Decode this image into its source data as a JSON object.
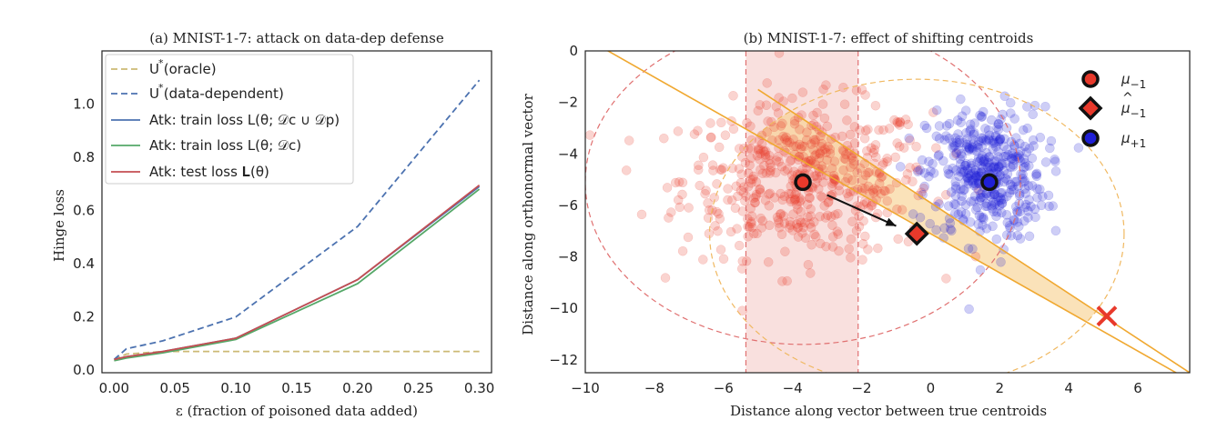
{
  "chart_data": [
    {
      "type": "line",
      "title": "(a) MNIST-1-7: attack on data-dep defense",
      "xlabel": "ε (fraction of poisoned data added)",
      "ylabel": "Hinge loss",
      "xlim": [
        -0.01,
        0.31
      ],
      "ylim": [
        -0.01,
        1.2
      ],
      "xticks": [
        "0.00",
        "0.05",
        "0.10",
        "0.15",
        "0.20",
        "0.25",
        "0.30"
      ],
      "yticks": [
        "0.0",
        "0.2",
        "0.4",
        "0.6",
        "0.8",
        "1.0"
      ],
      "grid": false,
      "legend_position": "top-left",
      "series": [
        {
          "name": "U* (oracle)",
          "legend": "U (oracle)",
          "color": "#ccb974",
          "dash": true,
          "x": [
            0.0,
            0.01,
            0.04,
            0.1,
            0.2,
            0.3
          ],
          "y": [
            0.04,
            0.06,
            0.07,
            0.07,
            0.07,
            0.07
          ]
        },
        {
          "name": "U* (data-dependent)",
          "legend": "U (data-dependent)",
          "color": "#4c72b0",
          "dash": true,
          "x": [
            0.0,
            0.01,
            0.04,
            0.1,
            0.2,
            0.3
          ],
          "y": [
            0.04,
            0.08,
            0.11,
            0.2,
            0.54,
            1.09
          ]
        },
        {
          "name": "Atk: train loss L(θ̂; Dc ∪ Dp)",
          "legend": "Atk: train loss L(θ; 𝒟c ∪ 𝒟p)",
          "color": "#4c72b0",
          "dash": false,
          "x": [
            0.0,
            0.01,
            0.04,
            0.1,
            0.2,
            0.3
          ],
          "y": [
            0.04,
            0.05,
            0.07,
            0.12,
            0.34,
            0.69
          ]
        },
        {
          "name": "Atk: train loss L(θ̂; Dc)",
          "legend": "Atk: train loss L(θ; 𝒟c)",
          "color": "#55a868",
          "dash": false,
          "x": [
            0.0,
            0.01,
            0.04,
            0.1,
            0.2,
            0.3
          ],
          "y": [
            0.035,
            0.045,
            0.065,
            0.115,
            0.325,
            0.68
          ]
        },
        {
          "name": "Atk: test loss L(θ̂)",
          "legend": "Atk: test loss 𝐋(θ)",
          "color": "#c44e52",
          "dash": false,
          "x": [
            0.0,
            0.01,
            0.04,
            0.1,
            0.2,
            0.3
          ],
          "y": [
            0.04,
            0.05,
            0.07,
            0.12,
            0.34,
            0.695
          ]
        }
      ]
    },
    {
      "type": "scatter",
      "title": "(b) MNIST-1-7: effect of shifting centroids",
      "xlabel": "Distance along vector between true centroids",
      "ylabel": "Distance along orthonormal vector",
      "xlim": [
        -10,
        7.5
      ],
      "ylim": [
        -12.5,
        0
      ],
      "xticks": [
        "−10",
        "−8",
        "−6",
        "−4",
        "−2",
        "0",
        "2",
        "4",
        "6"
      ],
      "yticks": [
        "0",
        "−2",
        "−4",
        "−6",
        "−8",
        "−10",
        "−12"
      ],
      "grid": false,
      "legend_position": "top-right",
      "legend": [
        {
          "label": "μ−1",
          "sym": "μ",
          "sub": "−1",
          "marker": "circle",
          "color": "#e8392b"
        },
        {
          "label": "μ̂−1",
          "sym": "μ",
          "sub": "−1",
          "marker": "diamond",
          "color": "#e8392b"
        },
        {
          "label": "μ+1",
          "sym": "μ",
          "sub": "+1",
          "marker": "circle",
          "color": "#1f1fd6"
        }
      ],
      "centroids": {
        "mu_neg": {
          "x": -3.7,
          "y": -5.1,
          "color": "#e8392b"
        },
        "mu_hat_neg": {
          "x": -0.4,
          "y": -7.1,
          "color": "#e8392b"
        },
        "mu_pos": {
          "x": 1.7,
          "y": -5.1,
          "color": "#1f1fd6"
        }
      },
      "arrow": {
        "from": [
          -3.0,
          -5.6
        ],
        "to": [
          -1.0,
          -6.8
        ]
      },
      "x_marker": {
        "x": 5.1,
        "y": -10.3,
        "color": "#e8392b"
      },
      "vertical_lines": [
        -5.35,
        -2.1
      ],
      "red_circle": {
        "cx": -3.7,
        "cy": -5.1,
        "r": 6.3
      },
      "orange_circle": {
        "cx": -0.4,
        "cy": -7.1,
        "r": 6.0
      },
      "slab": {
        "line_a": [
          [
            -10,
            0.5
          ],
          [
            7.5,
            -12.8
          ]
        ],
        "line_b": [
          [
            -5.0,
            -1.5
          ],
          [
            7.5,
            -12.5
          ]
        ]
      },
      "clusters": [
        {
          "name": "red",
          "color": "#e8392b",
          "cx": -3.6,
          "cy": -5.0,
          "sx": 1.8,
          "sy": 1.5,
          "n": 520
        },
        {
          "name": "blue",
          "color": "#1f1fd6",
          "cx": 1.6,
          "cy": -4.8,
          "sx": 0.85,
          "sy": 1.3,
          "n": 420
        }
      ]
    }
  ]
}
